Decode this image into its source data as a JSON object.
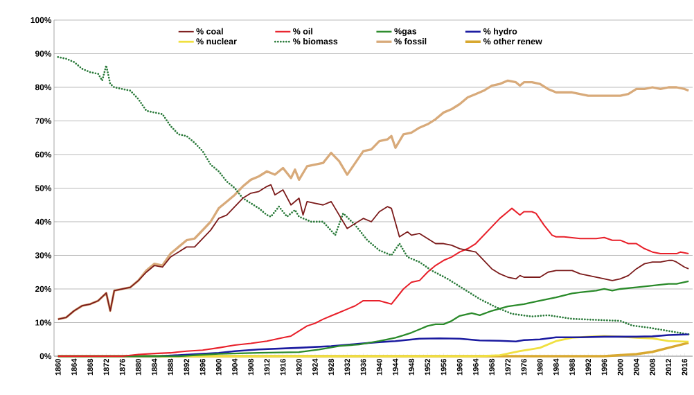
{
  "chart_data": {
    "type": "line",
    "xlim": [
      1859,
      2018
    ],
    "xticks": [
      1860,
      1864,
      1868,
      1872,
      1876,
      1880,
      1884,
      1888,
      1892,
      1896,
      1900,
      1904,
      1908,
      1912,
      1916,
      1920,
      1924,
      1928,
      1932,
      1936,
      1940,
      1944,
      1948,
      1952,
      1956,
      1960,
      1964,
      1968,
      1972,
      1976,
      1980,
      1984,
      1988,
      1992,
      1996,
      2000,
      2004,
      2008,
      2012,
      2016
    ],
    "ylim": [
      0,
      100
    ],
    "yticks": [
      {
        "value": 0,
        "label": "0%"
      },
      {
        "value": 10,
        "label": "10%"
      },
      {
        "value": 20,
        "label": "20%"
      },
      {
        "value": 30,
        "label": "30%"
      },
      {
        "value": 40,
        "label": "40%"
      },
      {
        "value": 50,
        "label": "50%"
      },
      {
        "value": 60,
        "label": "60%"
      },
      {
        "value": 70,
        "label": "70%"
      },
      {
        "value": 80,
        "label": "80%"
      },
      {
        "value": 90,
        "label": "90%"
      },
      {
        "value": 100,
        "label": "100%"
      }
    ],
    "grid": "y",
    "legend": "top",
    "marker": "none",
    "series": [
      {
        "name": "% coal",
        "color": "#7b1a1a",
        "line_style": "solid",
        "x": [
          1860,
          1862,
          1864,
          1866,
          1868,
          1870,
          1872,
          1873,
          1874,
          1876,
          1878,
          1880,
          1882,
          1884,
          1886,
          1888,
          1890,
          1892,
          1894,
          1896,
          1898,
          1900,
          1902,
          1904,
          1906,
          1908,
          1910,
          1912,
          1913,
          1914,
          1916,
          1918,
          1920,
          1921,
          1922,
          1924,
          1926,
          1928,
          1930,
          1932,
          1934,
          1936,
          1938,
          1940,
          1942,
          1943,
          1945,
          1947,
          1948,
          1950,
          1952,
          1954,
          1956,
          1958,
          1960,
          1962,
          1964,
          1966,
          1968,
          1970,
          1972,
          1974,
          1975,
          1976,
          1978,
          1980,
          1982,
          1984,
          1986,
          1988,
          1990,
          1992,
          1994,
          1996,
          1998,
          2000,
          2002,
          2004,
          2006,
          2008,
          2010,
          2012,
          2013,
          2014,
          2016,
          2017
        ],
        "values": [
          11,
          11.5,
          13.5,
          15,
          15.5,
          16.5,
          18.8,
          13.5,
          19.5,
          20,
          20.5,
          22.5,
          25,
          27,
          26.5,
          29.5,
          31,
          32.5,
          32.5,
          35,
          37.5,
          41,
          42,
          44.5,
          47,
          48.5,
          49,
          50.5,
          51,
          48,
          49.5,
          45,
          47,
          42,
          46,
          45.5,
          45,
          46,
          42,
          38,
          39.5,
          41,
          40,
          43,
          44.5,
          44,
          35.5,
          37,
          36,
          36.5,
          35,
          33.5,
          33.5,
          33,
          32,
          31.5,
          31,
          28.5,
          26,
          24.5,
          23.5,
          23,
          24,
          23.5,
          23.5,
          23.5,
          25,
          25.5,
          25.5,
          25.5,
          24.5,
          24,
          23.5,
          23,
          22.5,
          23,
          24,
          26,
          27.5,
          28,
          28,
          28.5,
          28.5,
          28,
          26.5,
          26
        ]
      },
      {
        "name": "% oil",
        "color": "#e8202a",
        "line_style": "solid",
        "x": [
          1860,
          1876,
          1880,
          1884,
          1888,
          1892,
          1896,
          1900,
          1904,
          1908,
          1912,
          1916,
          1918,
          1920,
          1922,
          1924,
          1926,
          1928,
          1930,
          1932,
          1934,
          1936,
          1938,
          1940,
          1943,
          1946,
          1948,
          1950,
          1952,
          1954,
          1956,
          1958,
          1960,
          1962,
          1964,
          1966,
          1968,
          1970,
          1972,
          1973,
          1975,
          1976,
          1978,
          1979,
          1981,
          1983,
          1984,
          1986,
          1990,
          1994,
          1996,
          1998,
          2000,
          2002,
          2004,
          2006,
          2008,
          2010,
          2012,
          2014,
          2015,
          2017
        ],
        "values": [
          0,
          0,
          0.5,
          0.8,
          1,
          1.5,
          1.8,
          2.5,
          3.3,
          3.8,
          4.5,
          5.5,
          6,
          7.5,
          9,
          9.8,
          11,
          12,
          13,
          14,
          15,
          16.5,
          16.5,
          16.5,
          15.5,
          20,
          22,
          22.5,
          25,
          27,
          28.5,
          29.5,
          31,
          32,
          33.5,
          36,
          38.5,
          41,
          43,
          44,
          42,
          43,
          43,
          42.5,
          39,
          36,
          35.5,
          35.5,
          35,
          35,
          35.3,
          34.5,
          34.5,
          33.5,
          33.5,
          32,
          31,
          30.5,
          30.5,
          30.5,
          31,
          30.5
        ]
      },
      {
        "name": "%gas",
        "color": "#2a8a2a",
        "line_style": "solid",
        "x": [
          1860,
          1890,
          1900,
          1910,
          1920,
          1925,
          1930,
          1935,
          1940,
          1944,
          1946,
          1948,
          1950,
          1952,
          1954,
          1956,
          1958,
          1960,
          1963,
          1965,
          1968,
          1972,
          1976,
          1980,
          1984,
          1988,
          1990,
          1994,
          1996,
          1998,
          2000,
          2004,
          2008,
          2012,
          2014,
          2017
        ],
        "values": [
          0,
          0,
          0.7,
          1,
          1.2,
          2,
          3,
          3.5,
          4.5,
          5.5,
          6.2,
          7,
          8,
          9,
          9.5,
          9.5,
          10.5,
          12,
          12.8,
          12.2,
          13.5,
          14.8,
          15.5,
          16.5,
          17.5,
          18.7,
          19,
          19.5,
          20,
          19.5,
          20,
          20.5,
          21,
          21.5,
          21.5,
          22.3
        ]
      },
      {
        "name": "% hydro",
        "color": "#1a1aa0",
        "line_style": "solid",
        "x": [
          1860,
          1885,
          1890,
          1900,
          1904,
          1910,
          1920,
          1928,
          1935,
          1940,
          1944,
          1950,
          1955,
          1960,
          1965,
          1970,
          1974,
          1976,
          1980,
          1984,
          1990,
          1996,
          2000,
          2004,
          2008,
          2012,
          2017
        ],
        "values": [
          0,
          0,
          0.3,
          1,
          1.5,
          2,
          2.5,
          3,
          3.7,
          4.2,
          4.5,
          5.2,
          5.3,
          5.2,
          4.7,
          4.6,
          4.4,
          4.8,
          5,
          5.6,
          5.6,
          5.8,
          5.8,
          5.8,
          5.9,
          6.3,
          6.5
        ]
      },
      {
        "name": "% nuclear",
        "color": "#f0e040",
        "line_style": "solid",
        "x": [
          1860,
          1965,
          1970,
          1975,
          1980,
          1984,
          1988,
          1992,
          1996,
          2000,
          2004,
          2008,
          2012,
          2017
        ],
        "values": [
          0,
          0,
          0.3,
          1.5,
          2.5,
          4.5,
          5.5,
          5.8,
          6,
          5.8,
          5.5,
          5.3,
          4.5,
          4.3
        ]
      },
      {
        "name": "% biomass",
        "color": "#2a7a3a",
        "line_style": "dotted",
        "x": [
          1860,
          1862,
          1864,
          1866,
          1868,
          1870,
          1871,
          1872,
          1873,
          1874,
          1876,
          1878,
          1880,
          1882,
          1884,
          1886,
          1888,
          1890,
          1892,
          1894,
          1896,
          1898,
          1900,
          1902,
          1904,
          1906,
          1908,
          1910,
          1912,
          1913,
          1915,
          1917,
          1919,
          1920,
          1923,
          1926,
          1929,
          1931,
          1934,
          1937,
          1940,
          1943,
          1945,
          1947,
          1950,
          1953,
          1957,
          1961,
          1965,
          1969,
          1973,
          1978,
          1982,
          1988,
          1994,
          2000,
          2003,
          2007,
          2011,
          2017
        ],
        "values": [
          89,
          88.5,
          87.5,
          85.5,
          84.5,
          84,
          82,
          86.5,
          81,
          80,
          79.5,
          79,
          76.5,
          73,
          72.5,
          72,
          68.5,
          66,
          65.5,
          63.5,
          61,
          57,
          55,
          52,
          50,
          47,
          45.5,
          44,
          42,
          41.5,
          44.5,
          41.5,
          43.5,
          41.5,
          40,
          40,
          36,
          42.5,
          39,
          34.5,
          31.5,
          30,
          33.5,
          29.5,
          28,
          25.5,
          23,
          20,
          17,
          14.6,
          12.6,
          11.8,
          12.2,
          11.1,
          10.8,
          10.5,
          9.1,
          8.5,
          7.7,
          6.5
        ]
      },
      {
        "name": "% fossil",
        "color": "#d8aa7a",
        "line_style": "solid",
        "x": [
          1860,
          1862,
          1864,
          1866,
          1868,
          1870,
          1872,
          1873,
          1874,
          1876,
          1878,
          1880,
          1882,
          1884,
          1886,
          1888,
          1890,
          1892,
          1894,
          1896,
          1898,
          1900,
          1902,
          1904,
          1906,
          1908,
          1910,
          1912,
          1914,
          1916,
          1918,
          1919,
          1920,
          1922,
          1924,
          1926,
          1928,
          1930,
          1932,
          1934,
          1936,
          1938,
          1940,
          1942,
          1943,
          1944,
          1946,
          1948,
          1950,
          1952,
          1954,
          1956,
          1958,
          1960,
          1962,
          1964,
          1966,
          1968,
          1970,
          1972,
          1974,
          1975,
          1976,
          1978,
          1980,
          1982,
          1984,
          1986,
          1988,
          1990,
          1992,
          1994,
          1996,
          1998,
          2000,
          2002,
          2004,
          2006,
          2008,
          2010,
          2012,
          2014,
          2016,
          2017
        ],
        "values": [
          11,
          11.5,
          13.5,
          15,
          15.5,
          16.5,
          18.8,
          13.5,
          19.5,
          20,
          20.5,
          22.5,
          25.5,
          27.5,
          27,
          30.5,
          32.5,
          34.5,
          35,
          37.5,
          40,
          44,
          46,
          48,
          50.5,
          52.5,
          53.5,
          55,
          54,
          56,
          53,
          55.5,
          52.5,
          56.5,
          57,
          57.5,
          60.5,
          58,
          54,
          57.5,
          61,
          61.5,
          64,
          64.5,
          65.5,
          62,
          66,
          66.5,
          68,
          69,
          70.5,
          72.5,
          73.5,
          75,
          77,
          78,
          79,
          80.5,
          81,
          82,
          81.5,
          80.5,
          81.5,
          81.5,
          81,
          79.5,
          78.5,
          78.5,
          78.5,
          78,
          77.5,
          77.5,
          77.5,
          77.5,
          77.5,
          78,
          79.5,
          79.5,
          80,
          79.5,
          80,
          80,
          79.5,
          79
        ]
      },
      {
        "name": "% other renew",
        "color": "#d8a830",
        "line_style": "solid",
        "x": [
          1860,
          1996,
          2000,
          2004,
          2008,
          2012,
          2017
        ],
        "values": [
          0,
          0,
          0.3,
          0.6,
          1.3,
          2.5,
          4
        ]
      }
    ]
  }
}
